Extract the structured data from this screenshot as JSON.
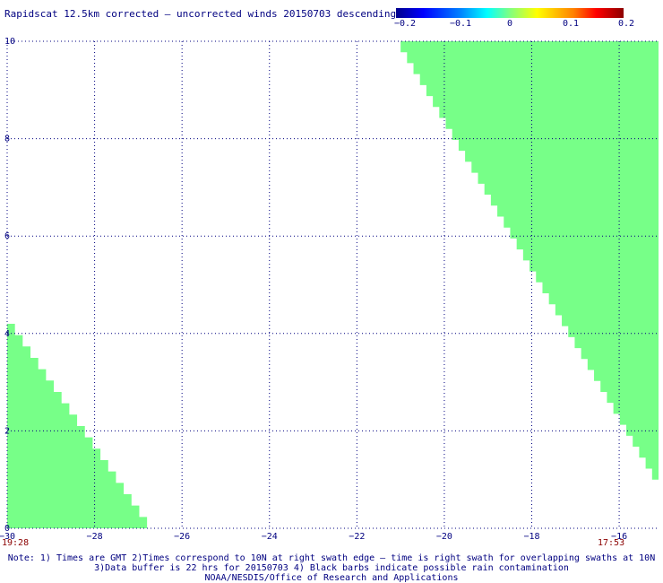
{
  "title": "Rapidscat 12.5km corrected – uncorrected winds 20150703 descending",
  "colorbar": {
    "ticks": [
      "−0.2",
      "−0.1",
      "0",
      "0.1",
      "0.2"
    ],
    "tick_values": [
      -0.2,
      -0.1,
      0,
      0.1,
      0.2
    ]
  },
  "map": {
    "lon_range": [
      -30,
      -15.1
    ],
    "lat_range": [
      0,
      10
    ],
    "x_ticks": [
      {
        "value": -30,
        "label": "−30"
      },
      {
        "value": -28,
        "label": "−28"
      },
      {
        "value": -26,
        "label": "−26"
      },
      {
        "value": -24,
        "label": "−24"
      },
      {
        "value": -22,
        "label": "−22"
      },
      {
        "value": -20,
        "label": "−20"
      },
      {
        "value": -18,
        "label": "−18"
      },
      {
        "value": -16,
        "label": "−16"
      }
    ],
    "y_ticks": [
      {
        "value": 0,
        "label": "0"
      },
      {
        "value": 2,
        "label": "2"
      },
      {
        "value": 4,
        "label": "4"
      },
      {
        "value": 6,
        "label": "6"
      },
      {
        "value": 8,
        "label": "8"
      },
      {
        "value": 10,
        "label": "10"
      }
    ],
    "swath_time_left": "19:28",
    "swath_time_right": "17:53",
    "swath_color": "#77ff88",
    "grid_color": "#000080",
    "text_color": "#000080",
    "time_color": "#8b0000"
  },
  "notes": [
    "Note: 1) Times are GMT 2)Times correspond to 10N at right swath edge – time is right swath for overlapping swaths at 10N",
    "3)Data buffer is 22 hrs for 20150703 4) Black barbs indicate possible rain contamination",
    "NOAA/NESDIS/Office of Research and Applications"
  ]
}
